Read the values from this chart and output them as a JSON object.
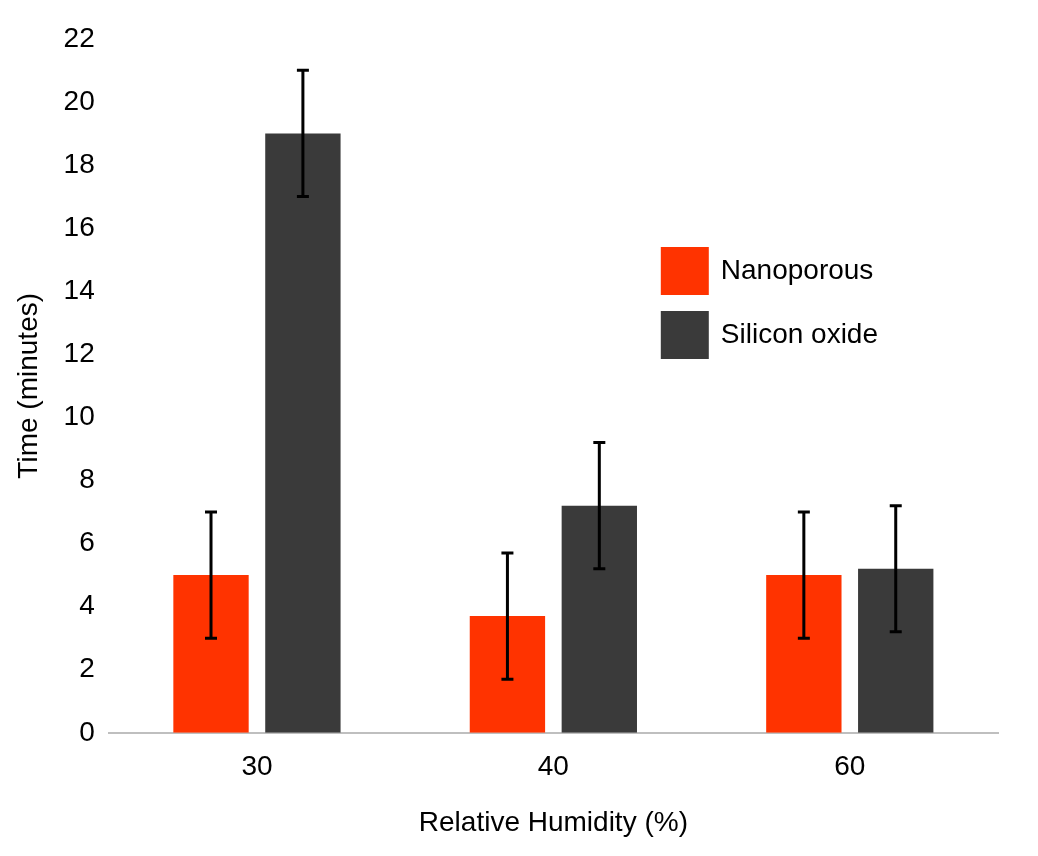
{
  "chart_data": {
    "type": "bar",
    "xlabel": "Relative Humidity (%)",
    "ylabel": "Time (minutes)",
    "categories": [
      "30",
      "40",
      "60"
    ],
    "series": [
      {
        "name": "Nanoporous",
        "color": "#ff3300",
        "values": [
          5,
          3.7,
          5
        ],
        "errors": [
          2,
          2,
          2
        ]
      },
      {
        "name": "Silicon oxide",
        "color": "#3a3a3a",
        "values": [
          19,
          7.2,
          5.2
        ],
        "errors": [
          2,
          2,
          2
        ]
      }
    ],
    "ylim": [
      0,
      22
    ],
    "yticks": [
      0,
      2,
      4,
      6,
      8,
      10,
      12,
      14,
      16,
      18,
      20,
      22
    ],
    "grid": false,
    "legend": "top right"
  }
}
